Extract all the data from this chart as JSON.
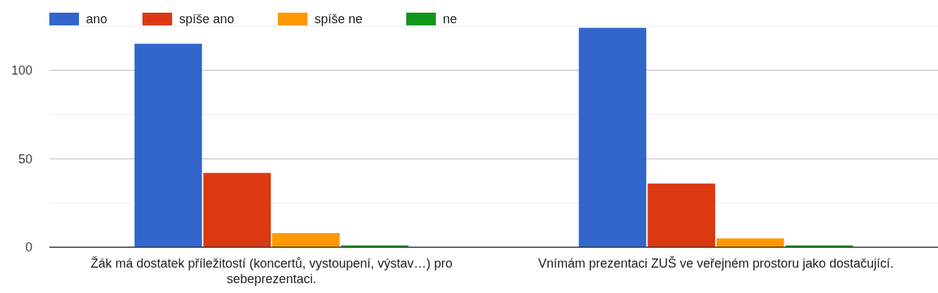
{
  "chart_data": {
    "type": "bar",
    "categories": [
      "Žák má dostatek příležitostí (koncertů, vystoupení, výstav…) pro sebeprezentaci.",
      "Vnímám prezentaci ZUŠ ve veřejném prostoru jako dostačující."
    ],
    "series": [
      {
        "name": "ano",
        "color": "#3366cc",
        "values": [
          115,
          124
        ]
      },
      {
        "name": "spíše ano",
        "color": "#dc3912",
        "values": [
          42,
          36
        ]
      },
      {
        "name": "spíše ne",
        "color": "#ff9900",
        "values": [
          8,
          5
        ]
      },
      {
        "name": "ne",
        "color": "#109618",
        "values": [
          1,
          1
        ]
      }
    ],
    "ylim": [
      0,
      125
    ],
    "yticks": [
      0,
      {
        "value": 25,
        "label": null
      },
      50,
      {
        "value": 75,
        "label": null
      },
      100,
      {
        "value": 125,
        "label": null
      }
    ],
    "grid": "y",
    "legend": "top left"
  }
}
